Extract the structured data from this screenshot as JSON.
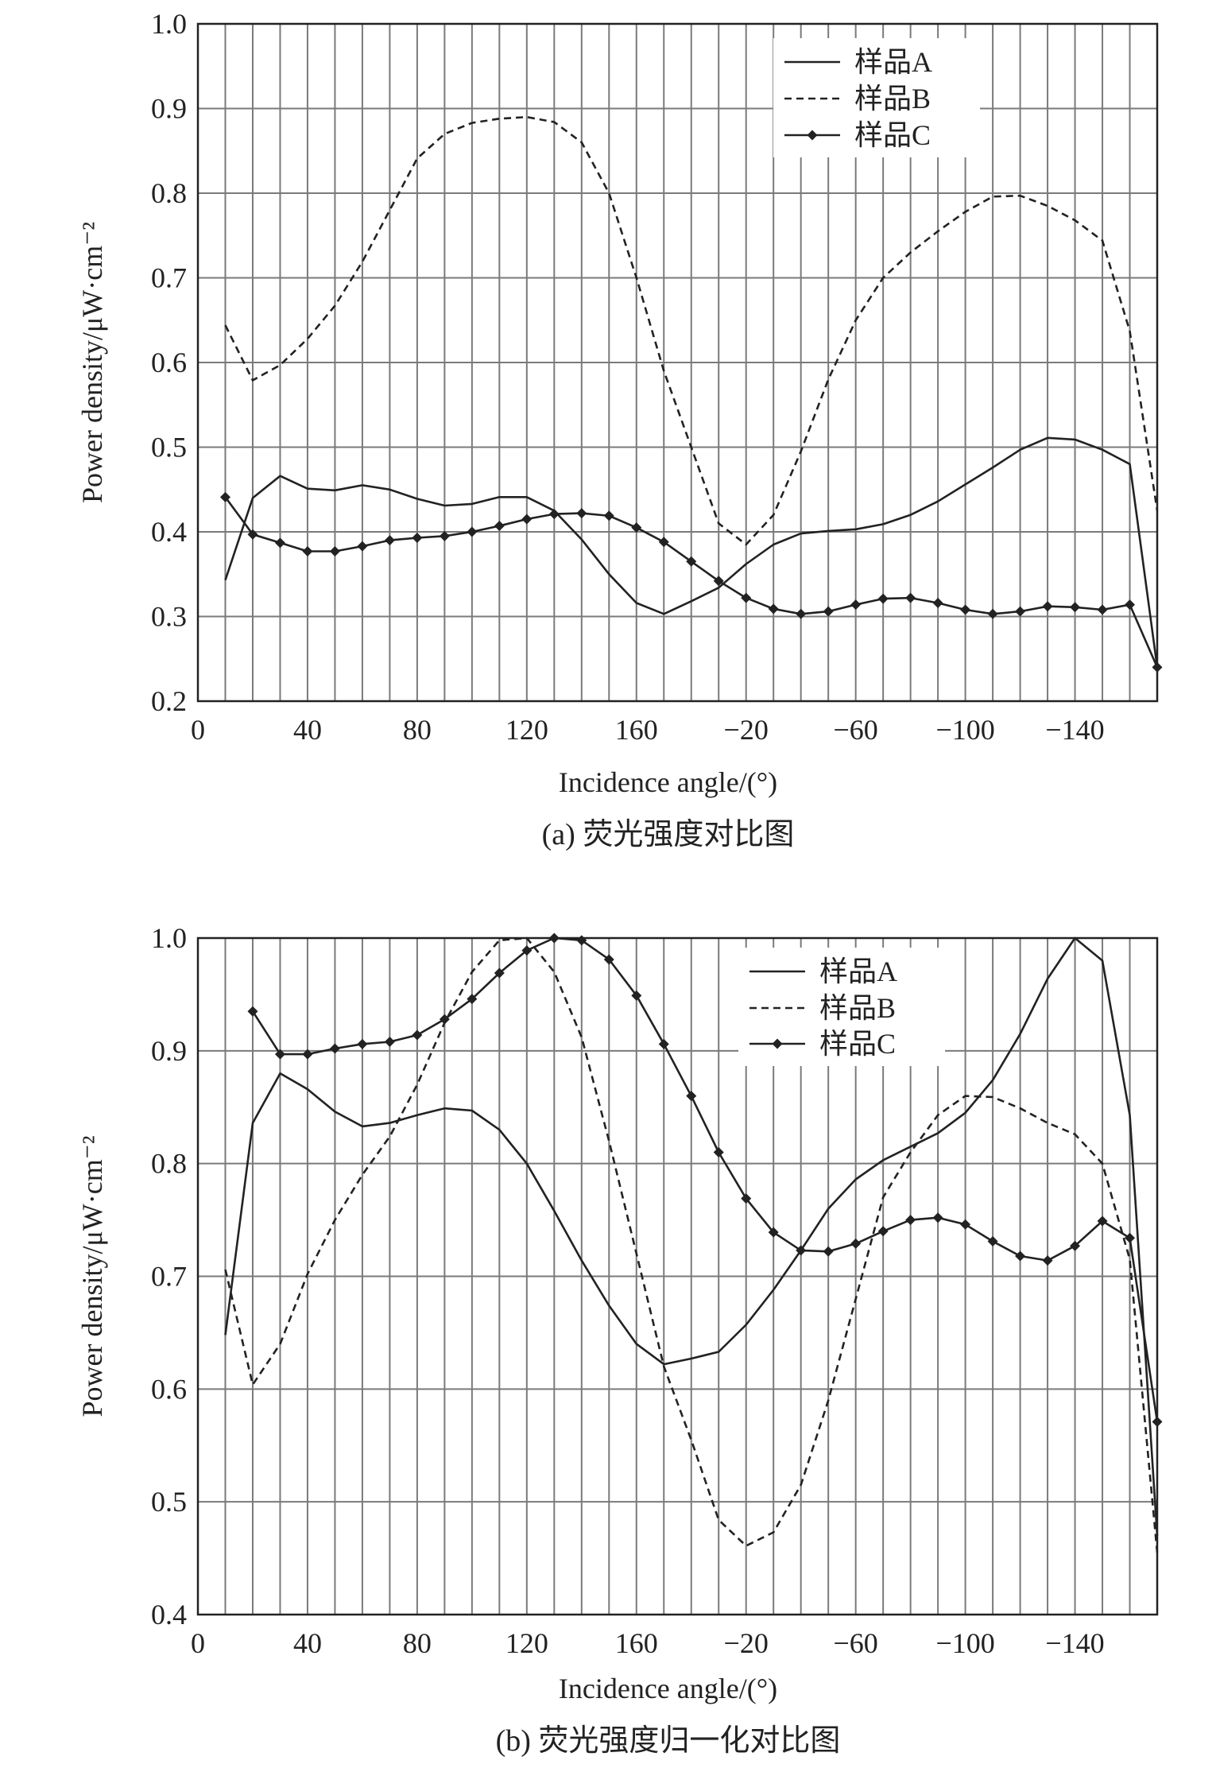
{
  "chart_data": [
    {
      "type": "line",
      "caption": "(a) 荧光强度对比图",
      "xlabel": "Incidence angle/(°)",
      "ylabel": "Power density/μW·cm⁻²",
      "ylim": [
        0.2,
        1.0
      ],
      "yticks": [
        "1.0",
        "0.9",
        "0.8",
        "0.7",
        "0.6",
        "0.5",
        "0.4",
        "0.3",
        "0.2"
      ],
      "xtick_labels": [
        "0",
        "40",
        "80",
        "120",
        "160",
        "−20",
        "−60",
        "−100",
        "−140"
      ],
      "grid": true,
      "legend_position": "top-right",
      "x": [
        10,
        20,
        30,
        40,
        50,
        60,
        70,
        80,
        90,
        100,
        110,
        120,
        130,
        140,
        150,
        160,
        170,
        180,
        190,
        -20,
        -30,
        -40,
        -50,
        -60,
        -70,
        -80,
        -90,
        -100,
        -110,
        -120,
        -130,
        -140,
        -150,
        -160,
        -170
      ],
      "series": [
        {
          "name": "样品A",
          "style": "solid",
          "values": [
            0.343,
            0.44,
            0.466,
            0.451,
            0.449,
            0.455,
            0.45,
            0.439,
            0.431,
            0.433,
            0.441,
            0.441,
            0.425,
            0.391,
            0.35,
            0.316,
            0.303,
            0.318,
            0.334,
            0.362,
            0.385,
            0.398,
            0.401,
            0.403,
            0.409,
            0.42,
            0.436,
            0.456,
            0.476,
            0.497,
            0.511,
            0.509,
            0.497,
            0.48,
            0.24
          ]
        },
        {
          "name": "样品B",
          "style": "dashed",
          "values": [
            0.644,
            0.579,
            0.597,
            0.628,
            0.667,
            0.719,
            0.78,
            0.841,
            0.87,
            0.883,
            0.888,
            0.89,
            0.884,
            0.86,
            0.8,
            0.7,
            0.59,
            0.5,
            0.41,
            0.385,
            0.42,
            0.495,
            0.58,
            0.65,
            0.7,
            0.73,
            0.755,
            0.778,
            0.796,
            0.797,
            0.785,
            0.768,
            0.744,
            0.637,
            0.425
          ]
        },
        {
          "name": "样品C",
          "style": "solid-diamond",
          "values": [
            0.441,
            0.397,
            0.387,
            0.377,
            0.377,
            0.383,
            0.39,
            0.393,
            0.395,
            0.4,
            0.407,
            0.415,
            0.421,
            0.422,
            0.419,
            0.405,
            0.388,
            0.365,
            0.342,
            0.322,
            0.309,
            0.303,
            0.306,
            0.314,
            0.321,
            0.322,
            0.316,
            0.308,
            0.303,
            0.306,
            0.312,
            0.311,
            0.308,
            0.314,
            0.24
          ]
        }
      ]
    },
    {
      "type": "line",
      "caption": "(b) 荧光强度归一化对比图",
      "xlabel": "Incidence angle/(°)",
      "ylabel": "Power density/μW·cm⁻²",
      "ylim": [
        0.4,
        1.0
      ],
      "yticks": [
        "1.0",
        "0.9",
        "0.8",
        "0.7",
        "0.6",
        "0.5",
        "0.4"
      ],
      "xtick_labels": [
        "0",
        "40",
        "80",
        "120",
        "160",
        "−20",
        "−60",
        "−100",
        "−140"
      ],
      "grid": true,
      "legend_position": "top-right",
      "x": [
        10,
        20,
        30,
        40,
        50,
        60,
        70,
        80,
        90,
        100,
        110,
        120,
        130,
        140,
        150,
        160,
        170,
        180,
        190,
        -20,
        -30,
        -40,
        -50,
        -60,
        -70,
        -80,
        -90,
        -100,
        -110,
        -120,
        -130,
        -140,
        -150,
        -160,
        -170
      ],
      "series": [
        {
          "name": "样品A",
          "style": "solid",
          "values": [
            0.648,
            0.836,
            0.88,
            0.866,
            0.846,
            0.833,
            0.836,
            0.843,
            0.849,
            0.847,
            0.83,
            0.8,
            0.758,
            0.714,
            0.674,
            0.64,
            0.622,
            0.627,
            0.633,
            0.657,
            0.688,
            0.723,
            0.76,
            0.786,
            0.803,
            0.815,
            0.827,
            0.845,
            0.874,
            0.915,
            0.964,
            1.0,
            0.98,
            0.843,
            0.47
          ]
        },
        {
          "name": "样品B",
          "style": "dashed",
          "values": [
            0.706,
            0.604,
            0.64,
            0.702,
            0.75,
            0.79,
            0.824,
            0.87,
            0.925,
            0.97,
            0.998,
            1.0,
            0.97,
            0.912,
            0.82,
            0.72,
            0.62,
            0.555,
            0.484,
            0.461,
            0.473,
            0.515,
            0.59,
            0.68,
            0.77,
            0.81,
            0.843,
            0.86,
            0.859,
            0.849,
            0.836,
            0.826,
            0.8,
            0.715,
            0.455
          ]
        },
        {
          "name": "样品C",
          "style": "solid-diamond",
          "values": [
            null,
            0.935,
            0.897,
            0.897,
            0.902,
            0.906,
            0.908,
            0.914,
            0.928,
            0.946,
            0.969,
            0.989,
            1.0,
            0.998,
            0.981,
            0.949,
            0.906,
            0.86,
            0.81,
            0.769,
            0.739,
            0.723,
            0.722,
            0.729,
            0.74,
            0.75,
            0.752,
            0.746,
            0.731,
            0.718,
            0.714,
            0.727,
            0.749,
            0.734,
            0.571
          ]
        }
      ]
    }
  ]
}
